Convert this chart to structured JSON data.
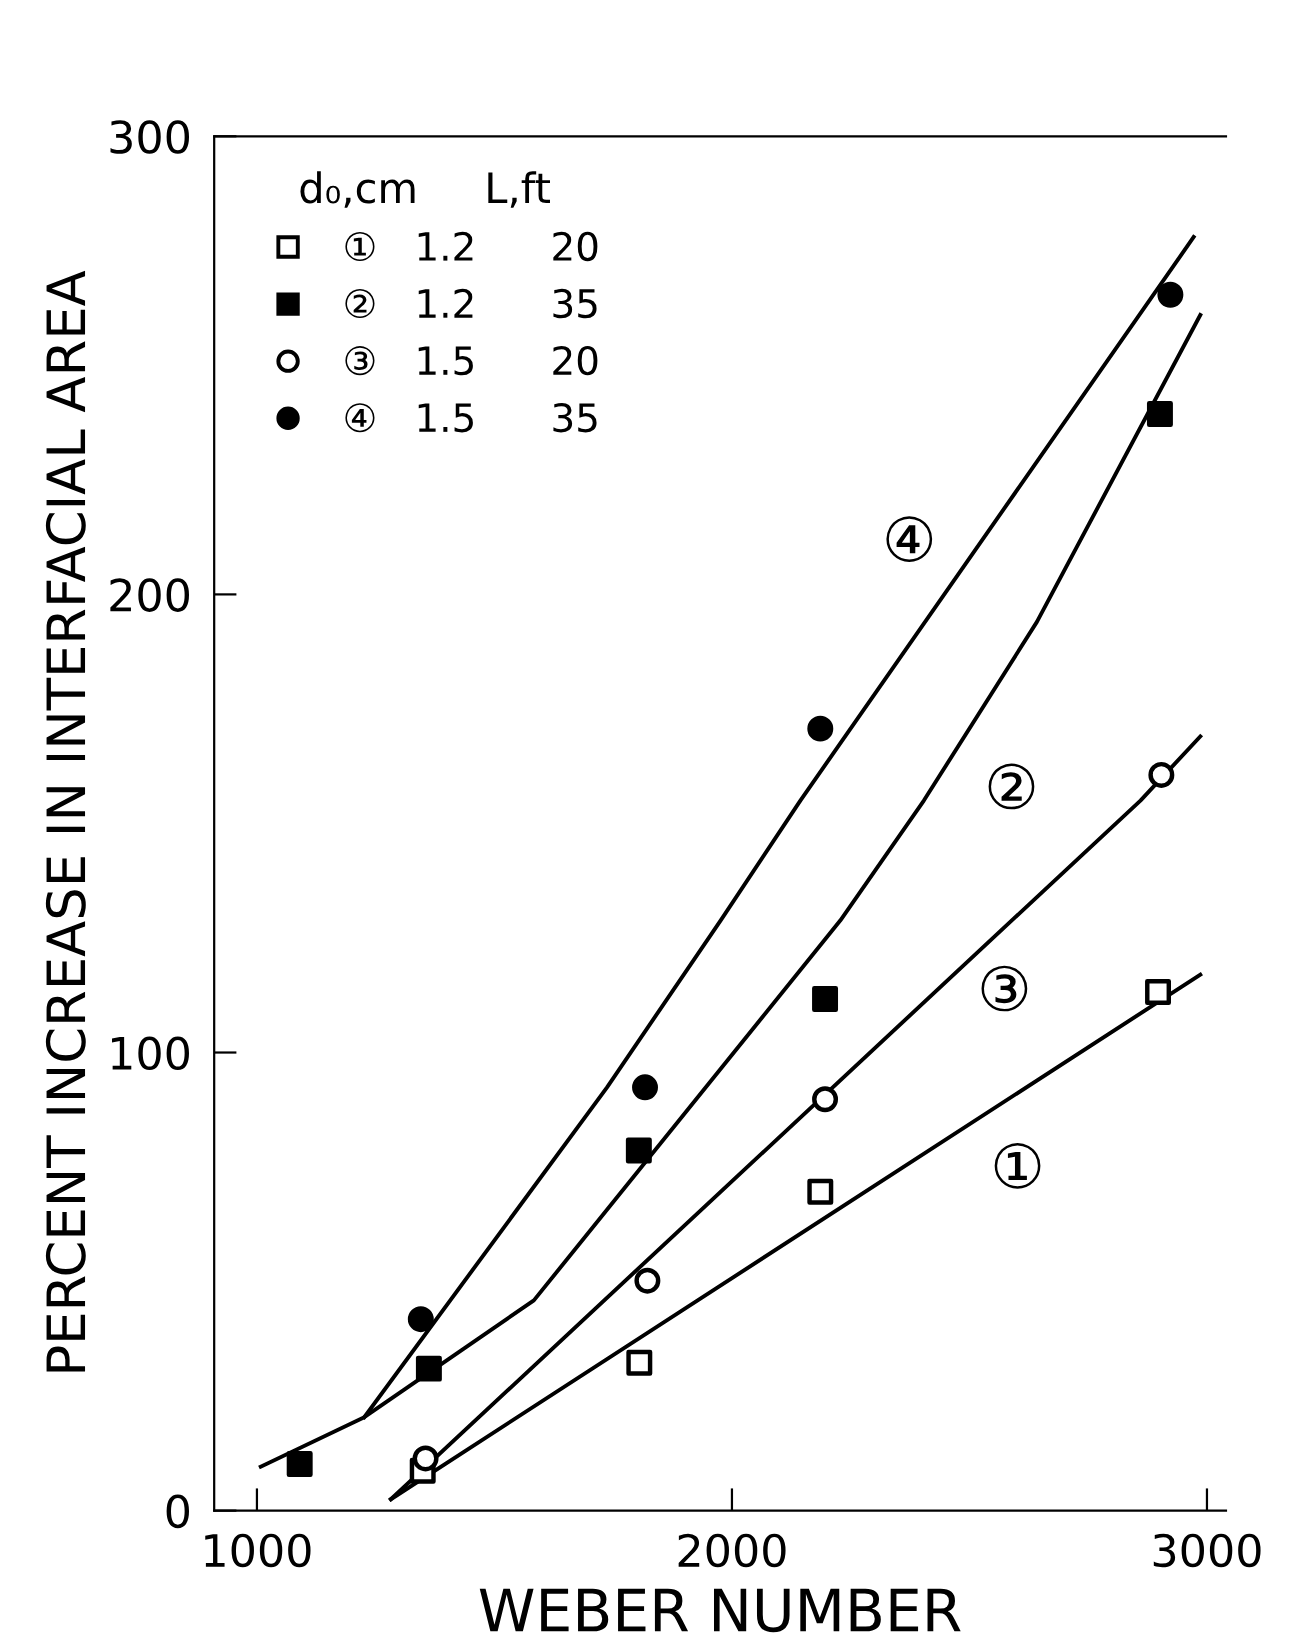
{
  "chart_data": {
    "type": "scatter",
    "xlabel": "WEBER NUMBER",
    "ylabel": "PERCENT INCREASE IN INTERFACIAL AREA",
    "xlim": [
      910,
      3040
    ],
    "ylim": [
      0,
      300
    ],
    "xticks": [
      1000,
      2000,
      3000
    ],
    "yticks": [
      0,
      100,
      200,
      300
    ],
    "grid": false,
    "legend": "top left",
    "legend_title": "d₀,cm     L,ft",
    "series": [
      {
        "name": "①   1.2      20",
        "marker": "square",
        "color": "#ffffff",
        "x": [
          1349,
          1805,
          2186,
          2897
        ],
        "values": [
          8.7,
          32.3,
          69.6,
          113.2
        ]
      },
      {
        "name": "②   1.2      35",
        "marker": "square",
        "color": "#000000",
        "x": [
          1090,
          1362,
          1804,
          2196,
          2901
        ],
        "values": [
          10.2,
          31,
          78.6,
          111.7,
          239.4
        ]
      },
      {
        "name": "③   1.5      20",
        "marker": "circle",
        "color": "#ffffff",
        "x": [
          1355,
          1822,
          2196,
          2904
        ],
        "values": [
          11.4,
          50.2,
          89.8,
          160.6
        ]
      },
      {
        "name": "④   1.5      35",
        "marker": "circle",
        "color": "#000000",
        "x": [
          1345,
          1817,
          2186,
          2923
        ],
        "values": [
          41.8,
          92.4,
          170.7,
          265.4
        ]
      },
      {
        "type": "line",
        "color": "#000000",
        "x": [
          1282,
          2986
        ],
        "values": [
          2.5,
          117
        ]
      },
      {
        "type": "line",
        "color": "#000000",
        "x": [
          1282,
          2860,
          2986
        ],
        "values": [
          2.5,
          155,
          169
        ]
      },
      {
        "type": "line",
        "color": "#000000",
        "x": [
          1008,
          1226,
          1583,
          2228,
          2404,
          2642,
          2986
        ],
        "values": [
          9.6,
          20.4,
          45.9,
          128.8,
          155,
          194,
          261
        ]
      },
      {
        "type": "line",
        "color": "#000000",
        "x": [
          1226,
          1737,
          1976,
          2144,
          2972
        ],
        "values": [
          20.4,
          92.4,
          128.8,
          155,
          278
        ]
      }
    ],
    "annotations": [
      "④",
      "②",
      "③",
      "①"
    ]
  }
}
